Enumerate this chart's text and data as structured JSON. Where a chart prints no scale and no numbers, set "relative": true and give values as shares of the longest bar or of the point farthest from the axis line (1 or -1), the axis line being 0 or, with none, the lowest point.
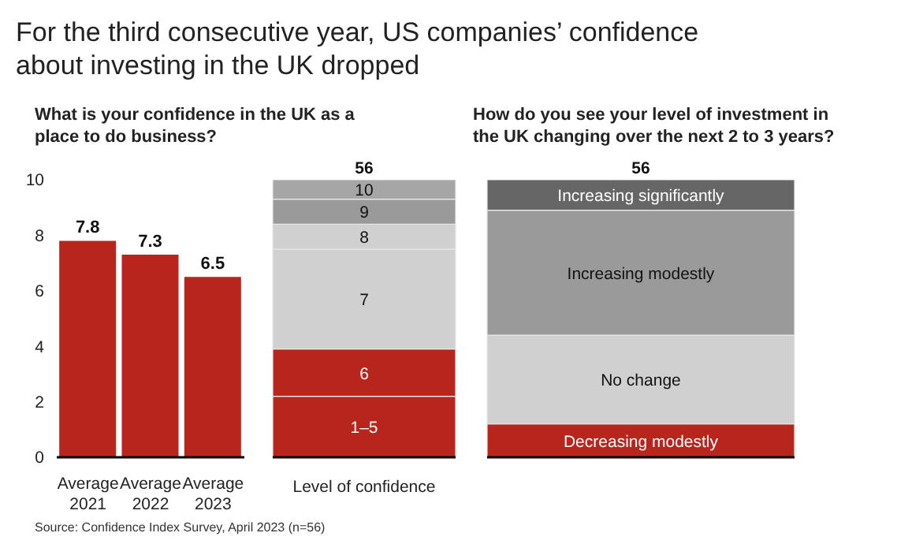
{
  "chart_data": [
    {
      "type": "bar",
      "title": "For the third consecutive year, US companies’ confidence about investing in the UK dropped",
      "subtitle": "What is your confidence in the UK as a place to do business?",
      "categories": [
        "Average 2021",
        "Average 2022",
        "Average 2023"
      ],
      "values": [
        7.8,
        7.3,
        6.5
      ],
      "color": "#b8251d",
      "ylim": [
        0,
        10
      ],
      "yticks": [
        0,
        2,
        4,
        6,
        8,
        10
      ],
      "data_labels": true,
      "annotations": [
        "Source: Confidence Index Survey, April 2023 (n=56)"
      ]
    },
    {
      "type": "bar",
      "stacked": true,
      "relative": true,
      "xlabel": "Level of confidence",
      "categories": [
        null
      ],
      "annotations": [
        "56"
      ],
      "series": [
        {
          "name": "1–5",
          "color": "#b8251d",
          "values": [
            0.22
          ]
        },
        {
          "name": "6",
          "color": "#b8251d",
          "values": [
            0.17
          ]
        },
        {
          "name": "7",
          "color": "#d0d0d0",
          "values": [
            0.36
          ]
        },
        {
          "name": "8",
          "color": "#d0d0d0",
          "values": [
            0.09
          ]
        },
        {
          "name": "9",
          "color": "#9a9a9a",
          "values": [
            0.09
          ]
        },
        {
          "name": "10",
          "color": "#a6a6a6",
          "values": [
            0.07
          ]
        }
      ]
    },
    {
      "type": "bar",
      "stacked": true,
      "relative": true,
      "title": "How do you see your level of investment in the UK changing over the next 2 to 3 years?",
      "categories": [
        null
      ],
      "annotations": [
        "56"
      ],
      "series": [
        {
          "name": "Decreasing modestly",
          "color": "#b8251d",
          "values": [
            0.12
          ]
        },
        {
          "name": "No change",
          "color": "#d0d0d0",
          "values": [
            0.32
          ]
        },
        {
          "name": "Increasing modestly",
          "color": "#9a9a9a",
          "values": [
            0.45
          ]
        },
        {
          "name": "Increasing significantly",
          "color": "#666666",
          "values": [
            0.11
          ]
        }
      ]
    }
  ]
}
